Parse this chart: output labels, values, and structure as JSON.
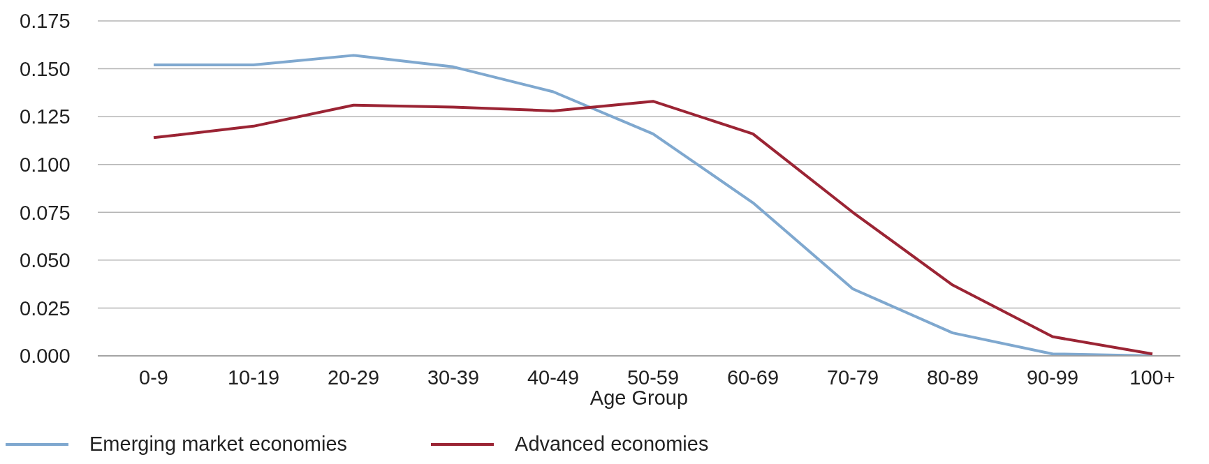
{
  "chart_data": {
    "type": "line",
    "xlabel": "Age Group",
    "categories": [
      "0-9",
      "10-19",
      "20-29",
      "30-39",
      "40-49",
      "50-59",
      "60-69",
      "70-79",
      "80-89",
      "90-99",
      "100+"
    ],
    "series": [
      {
        "name": "Emerging market economies",
        "color": "#7fa8cf",
        "values": [
          0.152,
          0.152,
          0.157,
          0.151,
          0.138,
          0.116,
          0.08,
          0.035,
          0.012,
          0.001,
          0.0
        ]
      },
      {
        "name": "Advanced economies",
        "color": "#9b2434",
        "values": [
          0.114,
          0.12,
          0.131,
          0.13,
          0.128,
          0.133,
          0.116,
          0.075,
          0.037,
          0.01,
          0.001
        ]
      }
    ],
    "ylim": [
      0,
      0.175
    ],
    "yticks": [
      {
        "value": 0,
        "label": "0.000"
      },
      {
        "value": 0.025,
        "label": "0.025"
      },
      {
        "value": 0.05,
        "label": "0.050"
      },
      {
        "value": 0.075,
        "label": "0.075"
      },
      {
        "value": 0.1,
        "label": "0.100"
      },
      {
        "value": 0.125,
        "label": "0.125"
      },
      {
        "value": 0.15,
        "label": "0.150"
      },
      {
        "value": 0.175,
        "label": "0.175"
      }
    ],
    "grid": "y",
    "legend": "bottom left",
    "marker": "none",
    "line_style": "solid"
  }
}
